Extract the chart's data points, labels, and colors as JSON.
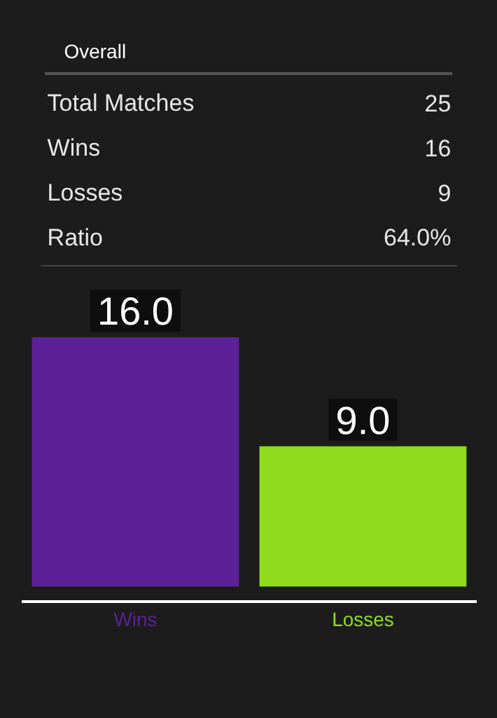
{
  "chart_data": [
    {
      "type": "other",
      "title": "Overall",
      "annotations": [
        "Total Matches",
        "25",
        "Wins",
        "16",
        "Losses",
        "9",
        "Ratio",
        "64.0%"
      ]
    },
    {
      "type": "bar",
      "categories": [
        "Wins",
        "Losses"
      ],
      "values": [
        16,
        9
      ],
      "colors": [
        "#5c2196",
        "#8fdc1e"
      ],
      "value_labels": [
        "16.0",
        "9.0"
      ]
    }
  ]
}
